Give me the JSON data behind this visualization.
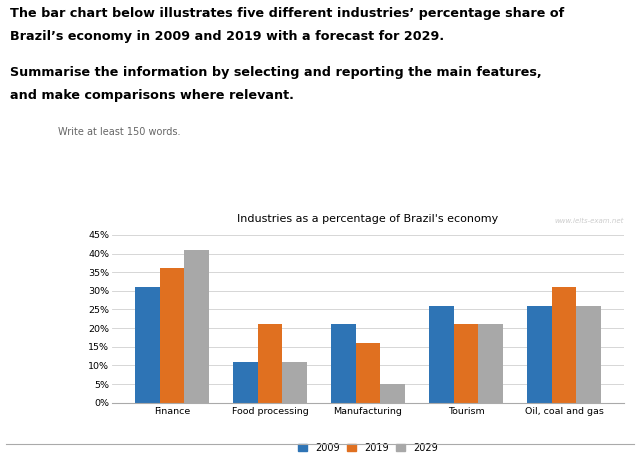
{
  "title": "Industries as a percentage of Brazil's economy",
  "watermark": "www.ielts-exam.net",
  "categories": [
    "Finance",
    "Food processing",
    "Manufacturing",
    "Tourism",
    "Oil, coal and gas"
  ],
  "years": [
    "2009",
    "2019",
    "2029"
  ],
  "values": {
    "2009": [
      31,
      11,
      21,
      26,
      26
    ],
    "2019": [
      36,
      21,
      16,
      21,
      31
    ],
    "2029": [
      41,
      11,
      5,
      21,
      26
    ]
  },
  "colors": {
    "2009": "#2E74B5",
    "2019": "#E07020",
    "2029": "#A8A8A8"
  },
  "bar_width": 0.25,
  "ylim": [
    0,
    47
  ],
  "yticks": [
    0,
    5,
    10,
    15,
    20,
    25,
    30,
    35,
    40,
    45
  ],
  "yticklabels": [
    "0%",
    "5%",
    "10%",
    "15%",
    "20%",
    "25%",
    "30%",
    "35%",
    "40%",
    "45%"
  ],
  "header_line1": "The bar chart below illustrates five different industries’ percentage share of",
  "header_line2": "Brazil’s economy in 2009 and 2019 with a forecast for 2029.",
  "subheader_line1": "Summarise the information by selecting and reporting the main features,",
  "subheader_line2": "and make comparisons where relevant.",
  "small_text": "Write at least 150 words.",
  "background_color": "#ffffff"
}
